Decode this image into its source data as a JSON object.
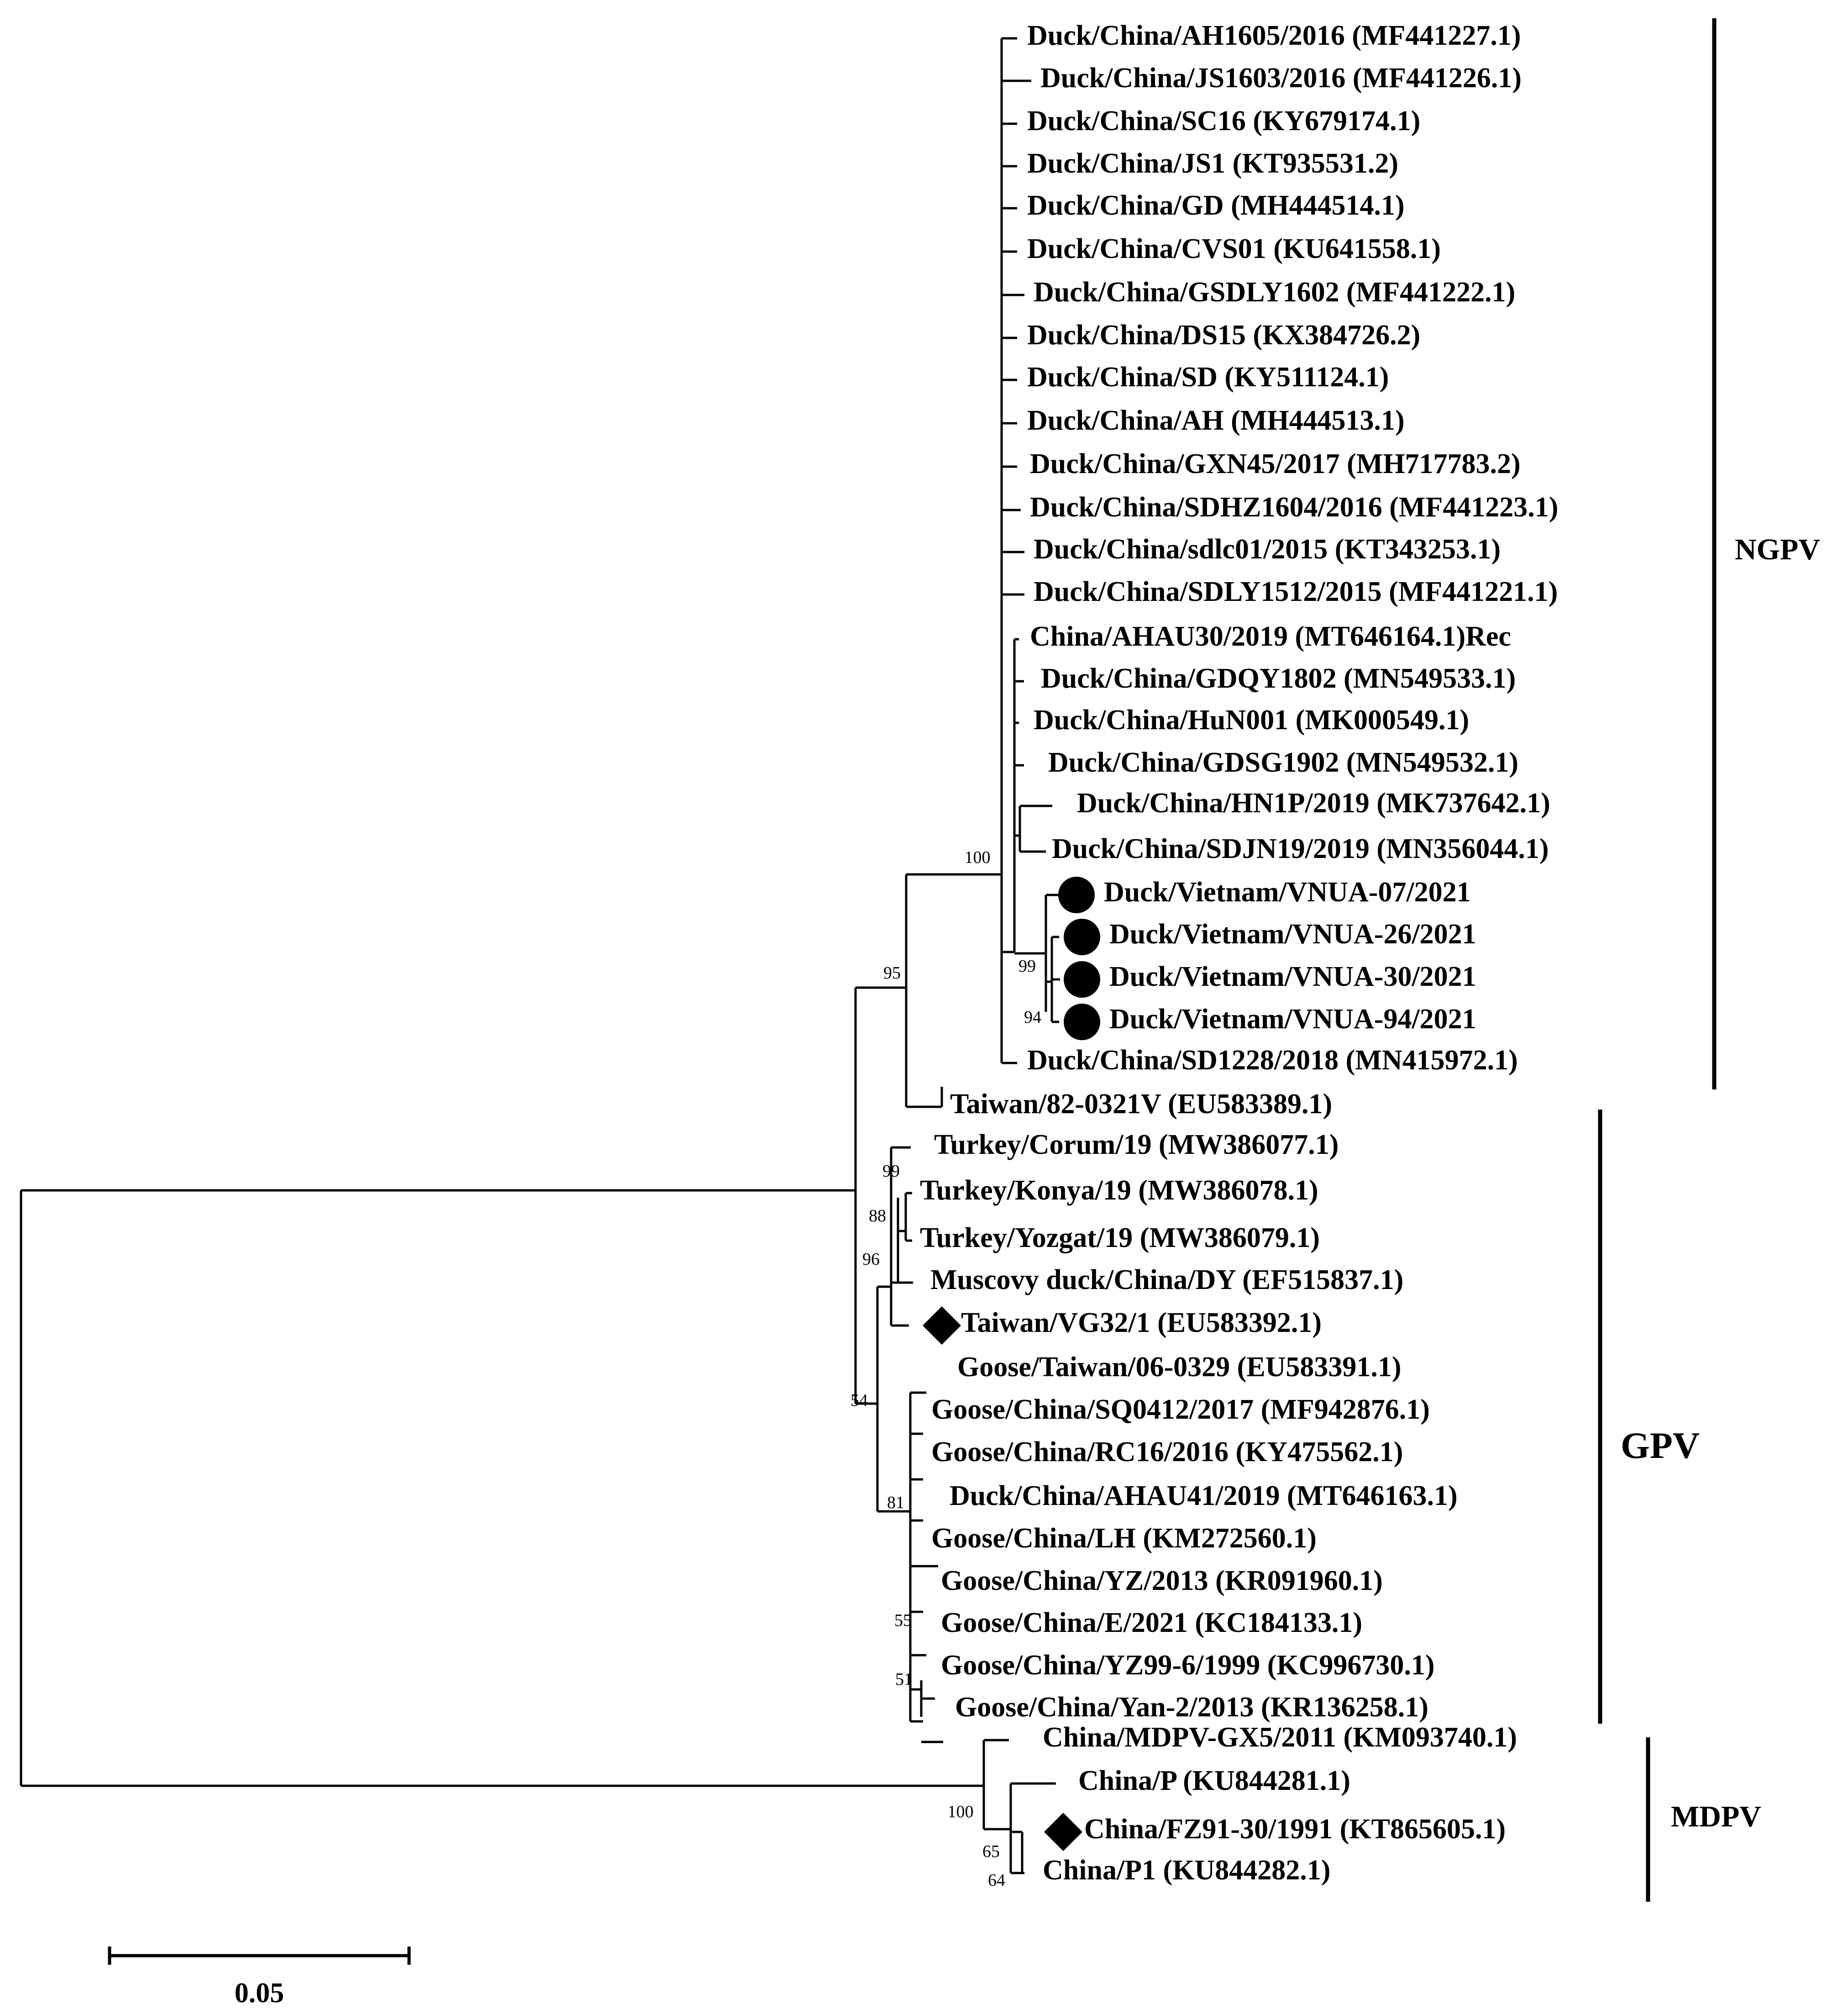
{
  "leaves": [
    {
      "label": "Duck/China/AH1605/2016 (MF441227.1)"
    },
    {
      "label": "Duck/China/JS1603/2016 (MF441226.1)"
    },
    {
      "label": "Duck/China/SC16 (KY679174.1)"
    },
    {
      "label": "Duck/China/JS1 (KT935531.2)"
    },
    {
      "label": "Duck/China/GD (MH444514.1)"
    },
    {
      "label": "Duck/China/CVS01 (KU641558.1)"
    },
    {
      "label": "Duck/China/GSDLY1602 (MF441222.1)"
    },
    {
      "label": "Duck/China/DS15 (KX384726.2)"
    },
    {
      "label": "Duck/China/SD (KY511124.1)"
    },
    {
      "label": "Duck/China/AH (MH444513.1)"
    },
    {
      "label": "Duck/China/GXN45/2017 (MH717783.2)"
    },
    {
      "label": "Duck/China/SDHZ1604/2016 (MF441223.1)"
    },
    {
      "label": "Duck/China/sdlc01/2015 (KT343253.1)"
    },
    {
      "label": "Duck/China/SDLY1512/2015 (MF441221.1)"
    },
    {
      "label": "China/AHAU30/2019 (MT646164.1)Rec"
    },
    {
      "label": "Duck/China/GDQY1802 (MN549533.1)"
    },
    {
      "label": "Duck/China/HuN001 (MK000549.1)"
    },
    {
      "label": "Duck/China/GDSG1902 (MN549532.1)"
    },
    {
      "label": "Duck/China/HN1P/2019 (MK737642.1)"
    },
    {
      "label": "Duck/China/SDJN19/2019 (MN356044.1)"
    },
    {
      "label": "Duck/Vietnam/VNUA-07/2021",
      "marker": "circle"
    },
    {
      "label": "Duck/Vietnam/VNUA-26/2021",
      "marker": "circle"
    },
    {
      "label": "Duck/Vietnam/VNUA-30/2021",
      "marker": "circle"
    },
    {
      "label": "Duck/Vietnam/VNUA-94/2021",
      "marker": "circle"
    },
    {
      "label": "Duck/China/SD1228/2018 (MN415972.1)"
    },
    {
      "label": "Taiwan/82-0321V (EU583389.1)"
    },
    {
      "label": "Turkey/Corum/19 (MW386077.1)"
    },
    {
      "label": "Turkey/Konya/19 (MW386078.1)"
    },
    {
      "label": "Turkey/Yozgat/19 (MW386079.1)"
    },
    {
      "label": "Muscovy duck/China/DY (EF515837.1)"
    },
    {
      "label": "Taiwan/VG32/1 (EU583392.1)",
      "marker": "diamond"
    },
    {
      "label": "Goose/Taiwan/06-0329 (EU583391.1)"
    },
    {
      "label": "Goose/China/SQ0412/2017 (MF942876.1)"
    },
    {
      "label": "Goose/China/RC16/2016 (KY475562.1)"
    },
    {
      "label": "Duck/China/AHAU41/2019 (MT646163.1)"
    },
    {
      "label": "Goose/China/LH (KM272560.1)"
    },
    {
      "label": "Goose/China/YZ/2013 (KR091960.1)"
    },
    {
      "label": "Goose/China/E/2021 (KC184133.1)"
    },
    {
      "label": "Goose/China/YZ99-6/1999 (KC996730.1)"
    },
    {
      "label": "Goose/China/Yan-2/2013 (KR136258.1)"
    },
    {
      "label": "China/MDPV-GX5/2011 (KM093740.1)"
    },
    {
      "label": "China/P (KU844281.1)"
    },
    {
      "label": "China/FZ91-30/1991 (KT865605.1)",
      "marker": "diamond"
    },
    {
      "label": "China/P1 (KU844282.1)"
    }
  ],
  "bootstrap": [
    "100",
    "95",
    "99",
    "94",
    "99",
    "88",
    "96",
    "54",
    "81",
    "55",
    "51",
    "100",
    "65",
    "64"
  ],
  "clades": [
    {
      "label": "NGPV"
    },
    {
      "label": "GPV"
    },
    {
      "label": "MDPV"
    }
  ],
  "scale_bar": {
    "label": "0.05"
  }
}
